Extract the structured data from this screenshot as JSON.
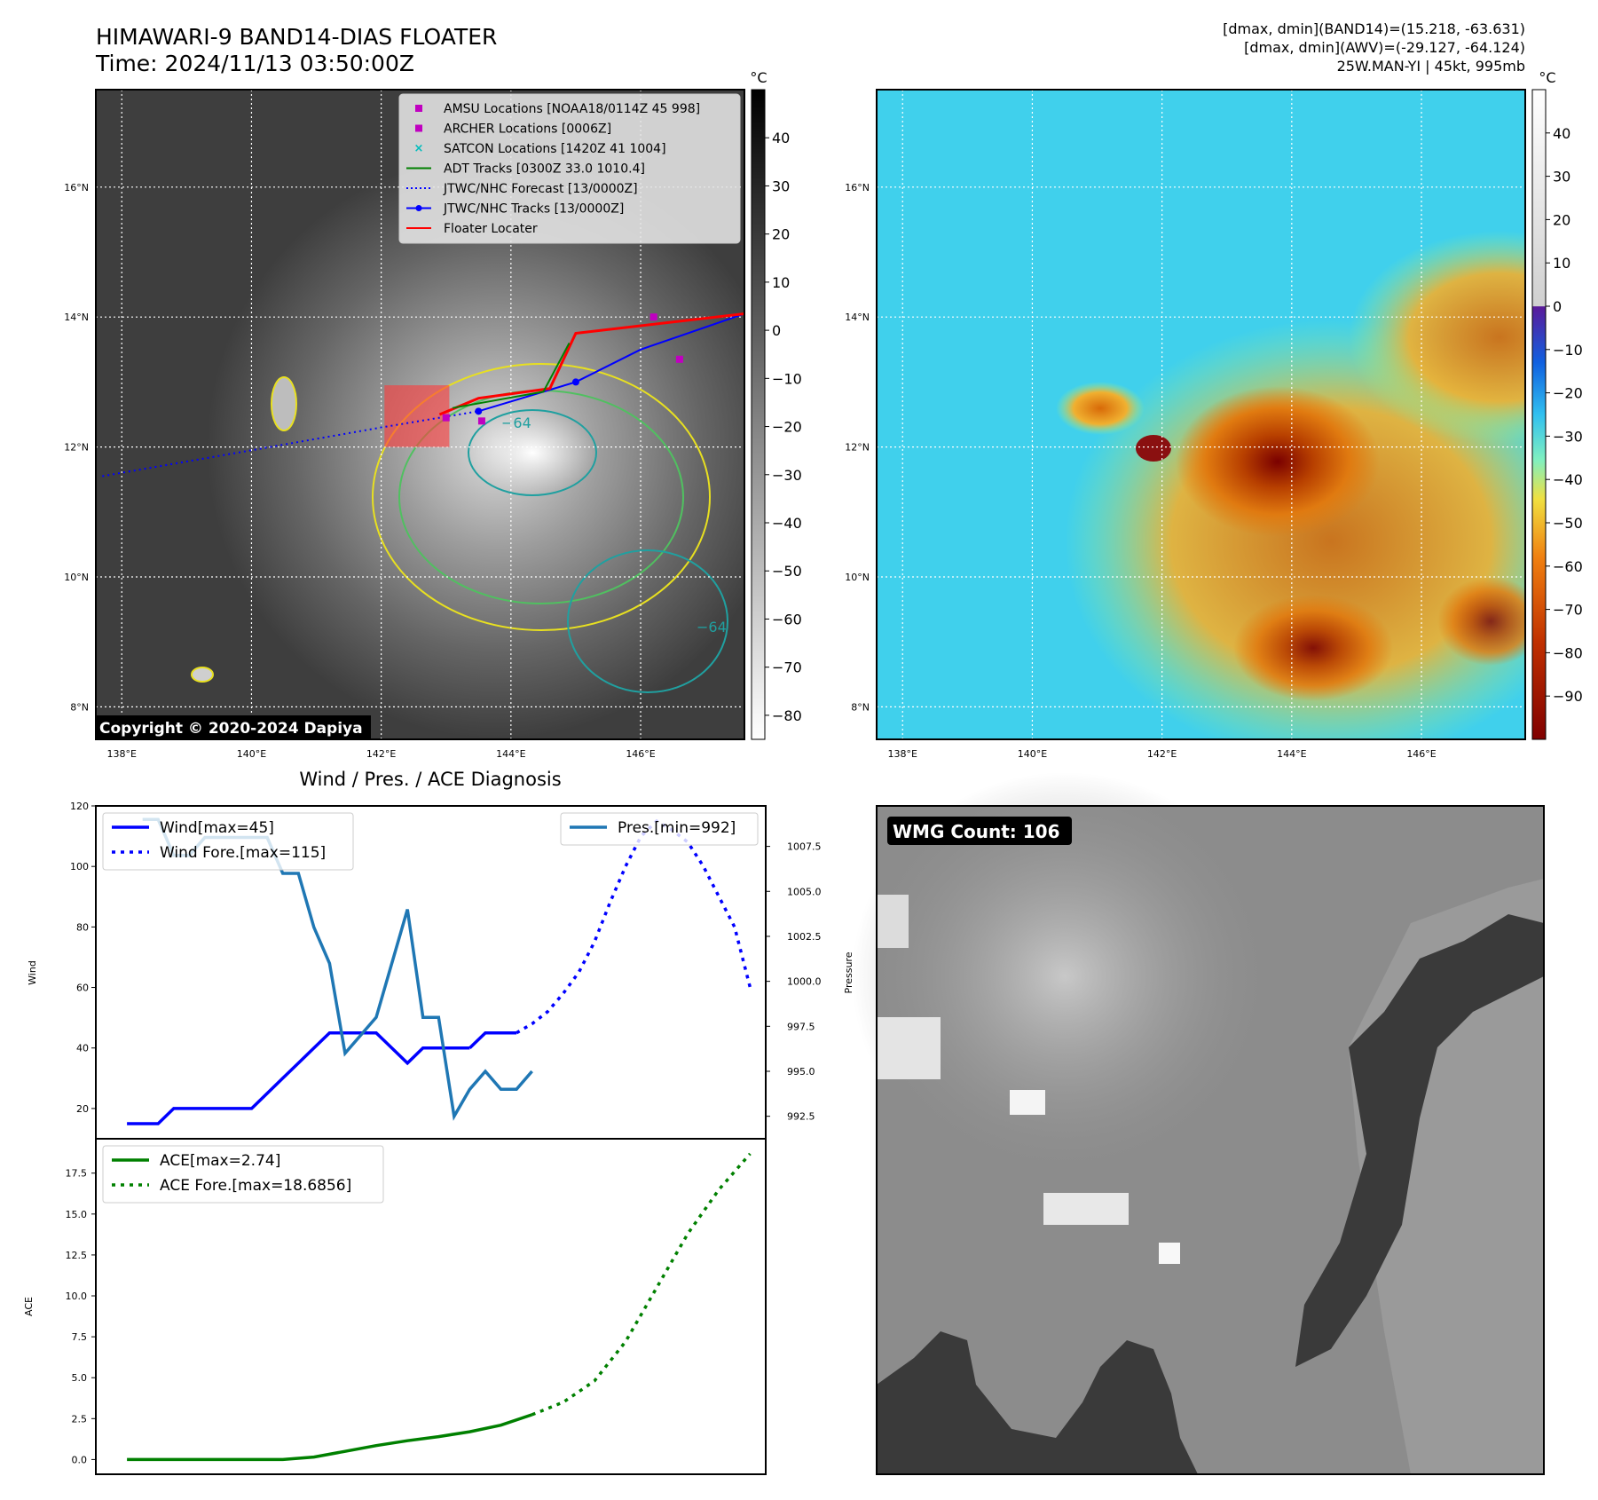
{
  "header": {
    "title_line1": "HIMAWARI-9 BAND14-DIAS FLOATER",
    "title_line2": "Time: 2024/11/13 03:50:00Z",
    "info_line1": "[dmax, dmin](BAND14)=(15.218, -63.631)",
    "info_line2": "[dmax, dmin](AWV)=(-29.127, -64.124)",
    "info_line3": "25W.MAN-YI | 45kt, 995mb"
  },
  "maps": {
    "lat_labels": [
      "16°N",
      "14°N",
      "12°N",
      "10°N",
      "8°N"
    ],
    "lon_labels": [
      "138°E",
      "140°E",
      "142°E",
      "144°E",
      "146°E"
    ],
    "lat_values": [
      16,
      14,
      12,
      10,
      8
    ],
    "lon_values": [
      138,
      140,
      142,
      144,
      146
    ],
    "lon_range": [
      137.6,
      147.6
    ],
    "lat_range": [
      7.5,
      17.5
    ],
    "copyright": "Copyright © 2020-2024 Dapiya",
    "contour_label_a": "−64",
    "contour_label_b": "−64",
    "legend": [
      {
        "label": "AMSU Locations [NOAA18/0114Z 45 998]",
        "marker": "square",
        "color": "#c000c0"
      },
      {
        "label": "ARCHER Locations [0006Z]",
        "marker": "square",
        "color": "#c000c0"
      },
      {
        "label": "SATCON Locations [1420Z 41 1004]",
        "marker": "x",
        "color": "#00bcbc"
      },
      {
        "label": "ADT Tracks [0300Z 33.0 1010.4]",
        "marker": "line",
        "color": "#008000"
      },
      {
        "label": "JTWC/NHC Forecast [13/0000Z]",
        "marker": "dotted",
        "color": "#0000ff"
      },
      {
        "label": "JTWC/NHC Tracks [13/0000Z]",
        "marker": "line-dot",
        "color": "#0000ff"
      },
      {
        "label": "Floater Locater",
        "marker": "line",
        "color": "#ff0000"
      }
    ],
    "cbar1": {
      "unit": "°C",
      "ticks": [
        "40",
        "30",
        "20",
        "10",
        "0",
        "−10",
        "−20",
        "−30",
        "−40",
        "−50",
        "−60",
        "−70",
        "−80"
      ],
      "values": [
        40,
        30,
        20,
        10,
        0,
        -10,
        -20,
        -30,
        -40,
        -50,
        -60,
        -70,
        -80
      ],
      "range": [
        -85,
        50
      ]
    },
    "cbar2": {
      "unit": "°C",
      "ticks": [
        "40",
        "30",
        "20",
        "10",
        "0",
        "−10",
        "−20",
        "−30",
        "−40",
        "−50",
        "−60",
        "−70",
        "−80",
        "−90"
      ],
      "values": [
        40,
        30,
        20,
        10,
        0,
        -10,
        -20,
        -30,
        -40,
        -50,
        -60,
        -70,
        -80,
        -90
      ],
      "range": [
        -100,
        50
      ]
    }
  },
  "diagnosis": {
    "title": "Wind / Pres. / ACE Diagnosis",
    "wind_ylabel": "Wind",
    "pressure_ylabel": "Pressure",
    "ace_ylabel": "ACE",
    "wmg_count": "WMG Count: 106"
  },
  "chart_data": [
    {
      "type": "line",
      "title": "Wind / Pres. / ACE Diagnosis",
      "ylabel": "Wind",
      "y2label": "Pressure",
      "ylim": [
        10,
        120
      ],
      "y2lim": [
        991.25,
        1009.75
      ],
      "xlim": [
        -2,
        41
      ],
      "yticks": [
        20,
        40,
        60,
        80,
        100,
        120
      ],
      "y2ticks": [
        "992.5",
        "995.0",
        "997.5",
        "1000.0",
        "1002.5",
        "1005.0",
        "1007.5"
      ],
      "y2tick_values": [
        992.5,
        995.0,
        997.5,
        1000.0,
        1002.5,
        1005.0,
        1007.5
      ],
      "series": [
        {
          "name": "Wind[max=45]",
          "axis": "left",
          "style": "solid",
          "color": "#0000ff",
          "x": [
            0,
            1,
            2,
            3,
            4,
            5,
            6,
            7,
            8,
            9,
            10,
            11,
            12,
            13,
            14,
            15,
            16,
            17,
            18,
            19,
            20,
            21,
            22
          ],
          "values": [
            15,
            15,
            15,
            20,
            20,
            20,
            20,
            20,
            20,
            25,
            30,
            35,
            40,
            45,
            45,
            45,
            45,
            40,
            35,
            40,
            40,
            40,
            40
          ]
        },
        {
          "name": "",
          "axis": "left",
          "style": "solid",
          "color": "#0000ff",
          "x": [
            22,
            23,
            24,
            25
          ],
          "values": [
            40,
            45,
            45,
            45
          ]
        },
        {
          "name": "Wind Fore.[max=115]",
          "axis": "left",
          "style": "dotted",
          "color": "#0000ff",
          "x": [
            25,
            26,
            27,
            28,
            29,
            30,
            31,
            32,
            33,
            34,
            35,
            36,
            37,
            38,
            39,
            40
          ],
          "values": [
            45,
            48,
            52,
            58,
            65,
            75,
            88,
            100,
            110,
            115,
            112,
            108,
            100,
            90,
            80,
            60
          ]
        },
        {
          "name": "Pres.[min=992]",
          "axis": "right",
          "style": "solid",
          "color": "#1f77b4",
          "x": [
            1,
            2,
            3,
            4,
            5,
            6,
            7,
            8,
            9,
            10,
            11,
            12,
            13,
            14,
            15,
            16,
            17,
            18,
            19,
            20,
            21,
            22,
            23,
            24,
            25,
            26
          ],
          "values": [
            1009,
            1009,
            1007,
            1007,
            1008,
            1008,
            1008,
            1008,
            1008,
            1006,
            1006,
            1003,
            1001,
            996,
            997,
            998,
            1001,
            1004,
            998,
            998,
            992.5,
            994,
            995,
            994,
            994,
            995
          ]
        }
      ]
    },
    {
      "type": "line",
      "ylabel": "ACE",
      "ylim": [
        -0.9,
        19.6
      ],
      "xlim": [
        -2,
        41
      ],
      "yticks": [
        "0.0",
        "2.5",
        "5.0",
        "7.5",
        "10.0",
        "12.5",
        "15.0",
        "17.5"
      ],
      "ytick_values": [
        0,
        2.5,
        5,
        7.5,
        10,
        12.5,
        15,
        17.5
      ],
      "series": [
        {
          "name": "ACE[max=2.74]",
          "style": "solid",
          "color": "#008000",
          "x": [
            0,
            2,
            4,
            6,
            8,
            10,
            12,
            14,
            16,
            18,
            20,
            22,
            24,
            26
          ],
          "values": [
            0,
            0,
            0,
            0,
            0,
            0,
            0.15,
            0.5,
            0.85,
            1.15,
            1.4,
            1.7,
            2.1,
            2.74
          ]
        },
        {
          "name": "ACE Fore.[max=18.6856]",
          "style": "dotted",
          "color": "#008000",
          "x": [
            26,
            28,
            30,
            32,
            34,
            36,
            38,
            40
          ],
          "values": [
            2.74,
            3.5,
            4.8,
            7.2,
            10.5,
            13.8,
            16.5,
            18.6856
          ]
        }
      ]
    }
  ]
}
